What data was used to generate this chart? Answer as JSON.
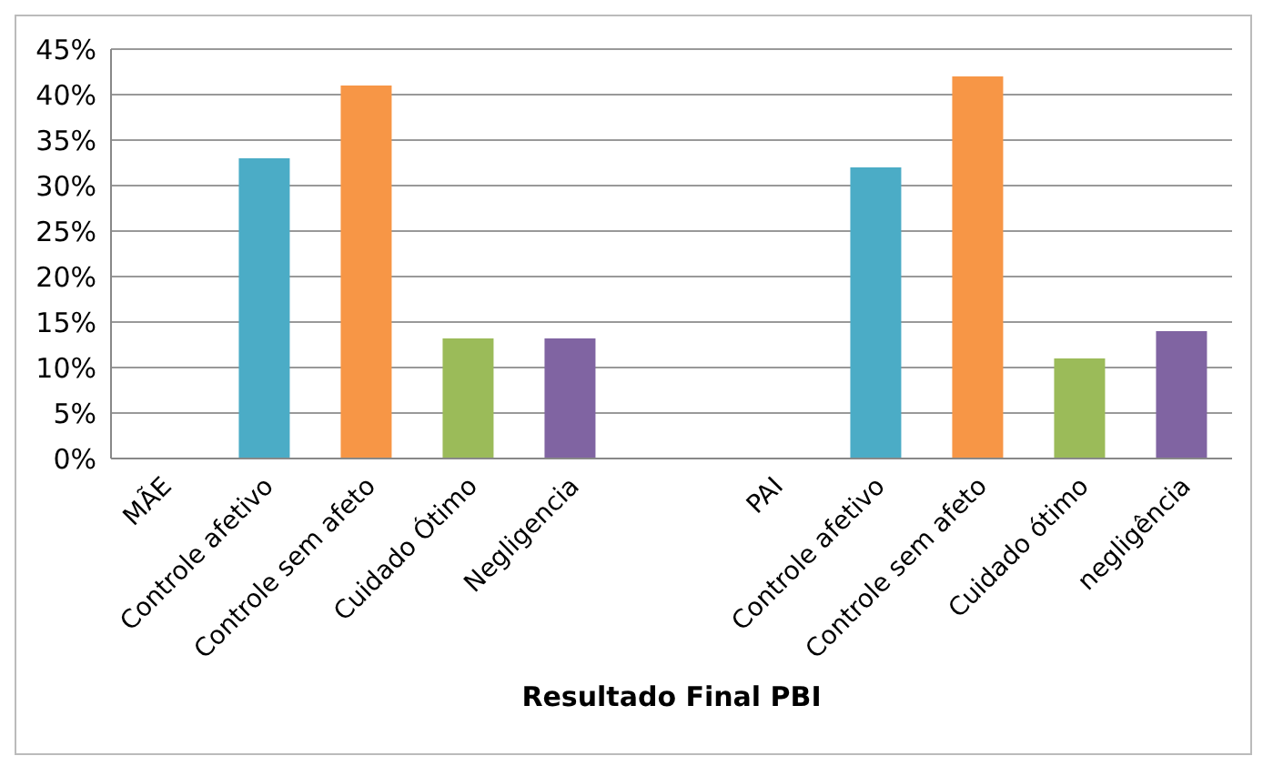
{
  "chart_data": {
    "type": "bar",
    "xlabel": "Resultado Final PBI",
    "categories": [
      "MÃE",
      "Controle afetivo",
      "Controle sem afeto",
      "Cuidado Ótimo",
      "Negligencia",
      null,
      "PAI",
      "Controle afetivo",
      "Controle sem afeto",
      "Cuidado ótimo",
      "negligência"
    ],
    "values": [
      null,
      33,
      41,
      13.2,
      13.2,
      null,
      null,
      32,
      42,
      11,
      14
    ],
    "colors": [
      "#4bacc6",
      "#4bacc6",
      "#f79646",
      "#9bbb59",
      "#8064a2",
      "#4bacc6",
      "#4bacc6",
      "#4bacc6",
      "#f79646",
      "#9bbb59",
      "#8064a2"
    ],
    "ylim": [
      0,
      45
    ],
    "yticks": [
      {
        "value": 0,
        "label": "0%"
      },
      {
        "value": 5,
        "label": "5%"
      },
      {
        "value": 10,
        "label": "10%"
      },
      {
        "value": 15,
        "label": "15%"
      },
      {
        "value": 20,
        "label": "20%"
      },
      {
        "value": 25,
        "label": "25%"
      },
      {
        "value": 30,
        "label": "30%"
      },
      {
        "value": 35,
        "label": "35%"
      },
      {
        "value": 40,
        "label": "40%"
      },
      {
        "value": 45,
        "label": "45%"
      }
    ],
    "grid": "y"
  }
}
